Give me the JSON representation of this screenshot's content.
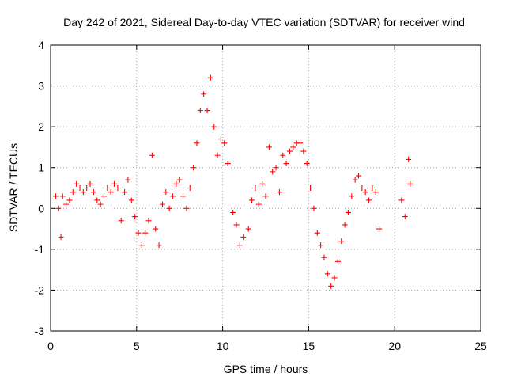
{
  "chart_data": {
    "type": "scatter",
    "title": "Day 242 of 2021, Sidereal Day-to-day VTEC variation (SDTVAR) for receiver wind",
    "xlabel": "GPS time / hours",
    "ylabel": "SDTVAR / TECUs",
    "xlim": [
      0,
      25
    ],
    "ylim": [
      -3,
      4
    ],
    "xticks": [
      "0",
      "5",
      "10",
      "15",
      "20",
      "25"
    ],
    "yticks": [
      "-3",
      "-2",
      "-1",
      "0",
      "1",
      "2",
      "3",
      "4"
    ],
    "grid": true,
    "marker": "+",
    "color": "#ff0000",
    "series": [
      {
        "name": "SDTVAR",
        "x": [
          0.3,
          0.45,
          0.6,
          0.7,
          0.9,
          1.1,
          1.3,
          1.5,
          1.7,
          1.9,
          2.1,
          2.3,
          2.5,
          2.7,
          2.9,
          3.1,
          3.3,
          3.5,
          3.7,
          3.9,
          4.1,
          4.3,
          4.5,
          4.7,
          4.9,
          5.1,
          5.3,
          5.5,
          5.7,
          5.9,
          6.1,
          6.3,
          6.5,
          6.7,
          6.9,
          7.1,
          7.3,
          7.5,
          7.7,
          7.9,
          8.1,
          8.3,
          8.5,
          8.7,
          8.9,
          9.1,
          9.3,
          9.5,
          9.7,
          9.9,
          10.1,
          10.3,
          10.6,
          10.8,
          11.0,
          11.2,
          11.5,
          11.7,
          11.9,
          12.1,
          12.3,
          12.5,
          12.7,
          12.9,
          13.1,
          13.3,
          13.5,
          13.7,
          13.9,
          14.1,
          14.3,
          14.5,
          14.7,
          14.9,
          15.1,
          15.3,
          15.5,
          15.7,
          15.9,
          16.1,
          16.3,
          16.5,
          16.7,
          16.9,
          17.1,
          17.3,
          17.5,
          17.7,
          17.9,
          18.1,
          18.3,
          18.5,
          18.7,
          18.9,
          19.1,
          20.4,
          20.6,
          20.8,
          20.9
        ],
        "y": [
          0.3,
          0.0,
          -0.7,
          0.3,
          0.1,
          0.2,
          0.4,
          0.6,
          0.5,
          0.4,
          0.5,
          0.6,
          0.4,
          0.2,
          0.1,
          0.3,
          0.5,
          0.4,
          0.6,
          0.5,
          -0.3,
          0.4,
          0.7,
          0.2,
          -0.2,
          -0.6,
          -0.9,
          -0.6,
          -0.3,
          1.3,
          -0.5,
          -0.9,
          0.1,
          0.4,
          0.0,
          0.3,
          0.6,
          0.7,
          0.3,
          0.0,
          0.5,
          1.0,
          1.6,
          2.4,
          2.8,
          2.4,
          3.2,
          2.0,
          1.3,
          1.7,
          1.6,
          1.1,
          -0.1,
          -0.4,
          -0.9,
          -0.7,
          -0.5,
          0.2,
          0.5,
          0.1,
          0.6,
          0.3,
          1.5,
          0.9,
          1.0,
          0.4,
          1.3,
          1.1,
          1.4,
          1.5,
          1.6,
          1.6,
          1.4,
          1.1,
          0.5,
          0.0,
          -0.6,
          -0.9,
          -1.2,
          -1.6,
          -1.9,
          -1.7,
          -1.3,
          -0.8,
          -0.4,
          -0.1,
          0.3,
          0.7,
          0.8,
          0.5,
          0.4,
          0.2,
          0.5,
          0.4,
          -0.5,
          0.2,
          -0.2,
          1.2,
          0.6
        ]
      }
    ]
  }
}
